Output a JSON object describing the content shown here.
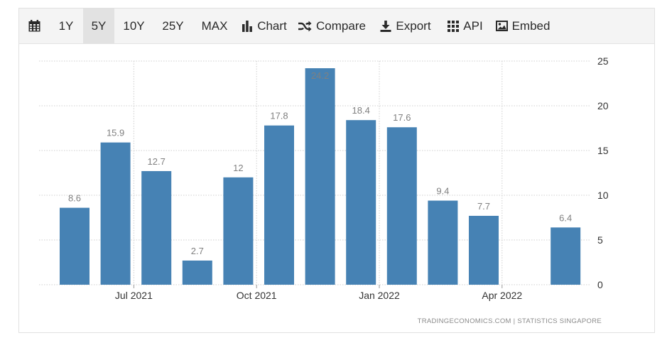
{
  "toolbar": {
    "calendar_icon": "calendar-icon",
    "ranges": [
      "1Y",
      "5Y",
      "10Y",
      "25Y",
      "MAX"
    ],
    "active_range": "5Y",
    "chart_label": "Chart",
    "compare_label": "Compare",
    "export_label": "Export",
    "api_label": "API",
    "embed_label": "Embed"
  },
  "chart_data": {
    "type": "bar",
    "title": "",
    "xlabel": "",
    "ylabel": "",
    "x_dates": [
      "2021-05",
      "2021-06",
      "2021-07",
      "2021-08",
      "2021-09",
      "2021-10",
      "2021-11",
      "2021-12",
      "2022-01",
      "2022-02",
      "2022-03",
      "2022-04",
      "2022-05"
    ],
    "values": [
      8.6,
      15.9,
      12.7,
      2.7,
      12,
      17.8,
      24.2,
      18.4,
      17.6,
      9.4,
      7.7,
      null,
      6.4
    ],
    "value_labels": [
      "8.6",
      "15.9",
      "12.7",
      "2.7",
      "12",
      "17.8",
      "24.2",
      "18.4",
      "17.6",
      "9.4",
      "7.7",
      "",
      "6.4"
    ],
    "x_tick_labels": [
      "Jul 2021",
      "Oct 2021",
      "Jan 2022",
      "Apr 2022"
    ],
    "y_ticks": [
      0,
      5,
      10,
      15,
      20,
      25
    ],
    "ylim": [
      0,
      25
    ],
    "y_axis_side": "right",
    "grid": true,
    "bar_color": "#4682b4",
    "label_color": "#808080"
  },
  "credit": "TRADINGECONOMICS.COM  |  STATISTICS SINGAPORE"
}
